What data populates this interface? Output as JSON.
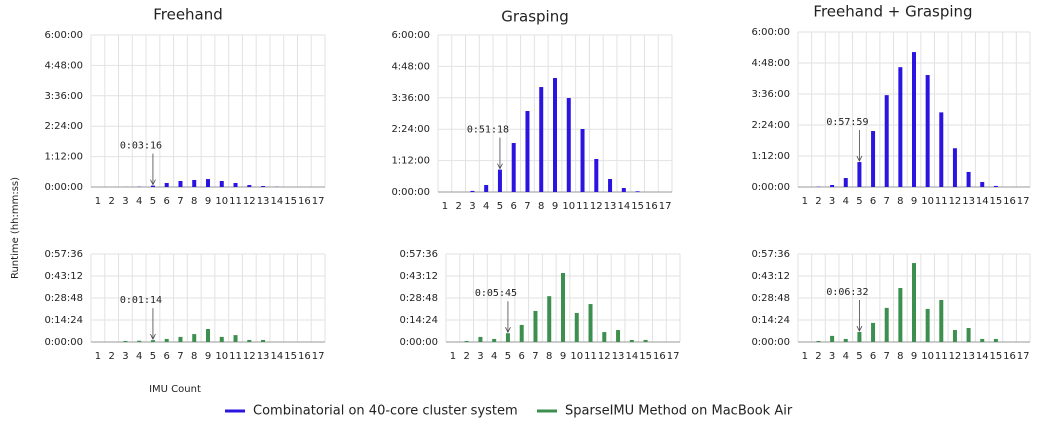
{
  "ylabel": "Runtime (hh:mm:ss)",
  "xlabel": "IMU Count",
  "chart_data": [
    {
      "type": "bar",
      "title": "Freehand",
      "categories": [
        "1",
        "2",
        "3",
        "4",
        "5",
        "6",
        "7",
        "8",
        "9",
        "10",
        "11",
        "12",
        "13",
        "14",
        "15",
        "16",
        "17"
      ],
      "series": [
        {
          "name": "Combinatorial on 40-core cluster system",
          "color": "#2b14e0",
          "values": [
            0,
            0,
            10,
            40,
            196,
            570,
            850,
            1000,
            1130,
            850,
            570,
            280,
            140,
            30,
            0,
            0,
            0
          ],
          "value_labels": [
            null,
            null,
            null,
            null,
            "0:03:16",
            null,
            null,
            null,
            null,
            null,
            null,
            null,
            null,
            null,
            null,
            null,
            null
          ]
        }
      ],
      "ylim": [
        0,
        21600
      ],
      "yticks": [
        {
          "value": 0,
          "label": "0:00:00"
        },
        {
          "value": 4320,
          "label": "1:12:00"
        },
        {
          "value": 8640,
          "label": "2:24:00"
        },
        {
          "value": 12960,
          "label": "3:36:00"
        },
        {
          "value": 17280,
          "label": "4:48:00"
        },
        {
          "value": 21600,
          "label": "6:00:00"
        }
      ],
      "grid": true
    },
    {
      "type": "bar",
      "title": "Grasping",
      "categories": [
        "1",
        "2",
        "3",
        "4",
        "5",
        "6",
        "7",
        "8",
        "9",
        "10",
        "11",
        "12",
        "13",
        "14",
        "15",
        "16",
        "17"
      ],
      "series": [
        {
          "name": "Combinatorial on 40-core cluster system",
          "color": "#2b14e0",
          "values": [
            0,
            0,
            150,
            960,
            3078,
            6740,
            11140,
            14440,
            15680,
            12930,
            8670,
            4540,
            1790,
            550,
            100,
            0,
            0
          ],
          "value_labels": [
            null,
            null,
            null,
            null,
            "0:51:18",
            null,
            null,
            null,
            null,
            null,
            null,
            null,
            null,
            null,
            null,
            null,
            null
          ]
        }
      ],
      "ylim": [
        0,
        21600
      ],
      "yticks": [
        {
          "value": 0,
          "label": "0:00:00"
        },
        {
          "value": 4320,
          "label": "1:12:00"
        },
        {
          "value": 8640,
          "label": "2:24:00"
        },
        {
          "value": 12960,
          "label": "3:36:00"
        },
        {
          "value": 17280,
          "label": "4:48:00"
        },
        {
          "value": 21600,
          "label": "6:00:00"
        }
      ],
      "grid": true
    },
    {
      "type": "bar",
      "title": "Freehand + Grasping",
      "categories": [
        "1",
        "2",
        "3",
        "4",
        "5",
        "6",
        "7",
        "8",
        "9",
        "10",
        "11",
        "12",
        "13",
        "14",
        "15",
        "16",
        "17"
      ],
      "series": [
        {
          "name": "Combinatorial on 40-core cluster system",
          "color": "#2b14e0",
          "values": [
            0,
            40,
            280,
            1250,
            3479,
            7800,
            12800,
            16700,
            18800,
            15600,
            10400,
            5400,
            2100,
            700,
            150,
            0,
            0
          ],
          "value_labels": [
            null,
            null,
            null,
            null,
            "0:57:59",
            null,
            null,
            null,
            null,
            null,
            null,
            null,
            null,
            null,
            null,
            null,
            null
          ]
        }
      ],
      "ylim": [
        0,
        21600
      ],
      "yticks": [
        {
          "value": 0,
          "label": "0:00:00"
        },
        {
          "value": 4320,
          "label": "1:12:00"
        },
        {
          "value": 8640,
          "label": "2:24:00"
        },
        {
          "value": 12960,
          "label": "3:36:00"
        },
        {
          "value": 17280,
          "label": "4:48:00"
        },
        {
          "value": 21600,
          "label": "6:00:00"
        }
      ],
      "grid": true
    },
    {
      "type": "bar",
      "categories": [
        "1",
        "2",
        "3",
        "4",
        "5",
        "6",
        "7",
        "8",
        "9",
        "10",
        "11",
        "12",
        "13",
        "14",
        "15",
        "16",
        "17"
      ],
      "series": [
        {
          "name": "SparseIMU Method on MacBook Air",
          "color": "#3d8f4f",
          "values": [
            0,
            0,
            40,
            50,
            74,
            120,
            200,
            310,
            510,
            200,
            270,
            80,
            80,
            0,
            0,
            0,
            0
          ],
          "value_labels": [
            null,
            null,
            null,
            null,
            "0:01:14",
            null,
            null,
            null,
            null,
            null,
            null,
            null,
            null,
            null,
            null,
            null,
            null
          ]
        }
      ],
      "ylim": [
        0,
        3456
      ],
      "yticks": [
        {
          "value": 0,
          "label": "0:00:00"
        },
        {
          "value": 864,
          "label": "0:14:24"
        },
        {
          "value": 1728,
          "label": "0:28:48"
        },
        {
          "value": 2592,
          "label": "0:43:12"
        },
        {
          "value": 3456,
          "label": "0:57:36"
        }
      ],
      "grid": true
    },
    {
      "type": "bar",
      "categories": [
        "1",
        "2",
        "3",
        "4",
        "5",
        "6",
        "7",
        "8",
        "9",
        "10",
        "11",
        "12",
        "13",
        "14",
        "15",
        "16",
        "17"
      ],
      "series": [
        {
          "name": "SparseIMU Method on MacBook Air",
          "color": "#3d8f4f",
          "values": [
            0,
            40,
            200,
            120,
            345,
            670,
            1220,
            1800,
            2710,
            1140,
            1490,
            390,
            470,
            80,
            80,
            0,
            0
          ],
          "value_labels": [
            null,
            null,
            null,
            null,
            "0:05:45",
            null,
            null,
            null,
            null,
            null,
            null,
            null,
            null,
            null,
            null,
            null,
            null
          ]
        }
      ],
      "ylim": [
        0,
        3456
      ],
      "yticks": [
        {
          "value": 0,
          "label": "0:00:00"
        },
        {
          "value": 864,
          "label": "0:14:24"
        },
        {
          "value": 1728,
          "label": "0:28:48"
        },
        {
          "value": 2592,
          "label": "0:43:12"
        },
        {
          "value": 3456,
          "label": "0:57:36"
        }
      ],
      "grid": true
    },
    {
      "type": "bar",
      "categories": [
        "1",
        "2",
        "3",
        "4",
        "5",
        "6",
        "7",
        "8",
        "9",
        "10",
        "11",
        "12",
        "13",
        "14",
        "15",
        "16",
        "17"
      ],
      "series": [
        {
          "name": "SparseIMU Method on MacBook Air",
          "color": "#3d8f4f",
          "values": [
            0,
            40,
            240,
            120,
            392,
            750,
            1340,
            2120,
            3100,
            1300,
            1650,
            470,
            550,
            120,
            120,
            0,
            0
          ],
          "value_labels": [
            null,
            null,
            null,
            null,
            "0:06:32",
            null,
            null,
            null,
            null,
            null,
            null,
            null,
            null,
            null,
            null,
            null,
            null
          ]
        }
      ],
      "ylim": [
        0,
        3456
      ],
      "yticks": [
        {
          "value": 0,
          "label": "0:00:00"
        },
        {
          "value": 864,
          "label": "0:14:24"
        },
        {
          "value": 1728,
          "label": "0:28:48"
        },
        {
          "value": 2592,
          "label": "0:43:12"
        },
        {
          "value": 3456,
          "label": "0:57:36"
        }
      ],
      "grid": true
    }
  ]
}
